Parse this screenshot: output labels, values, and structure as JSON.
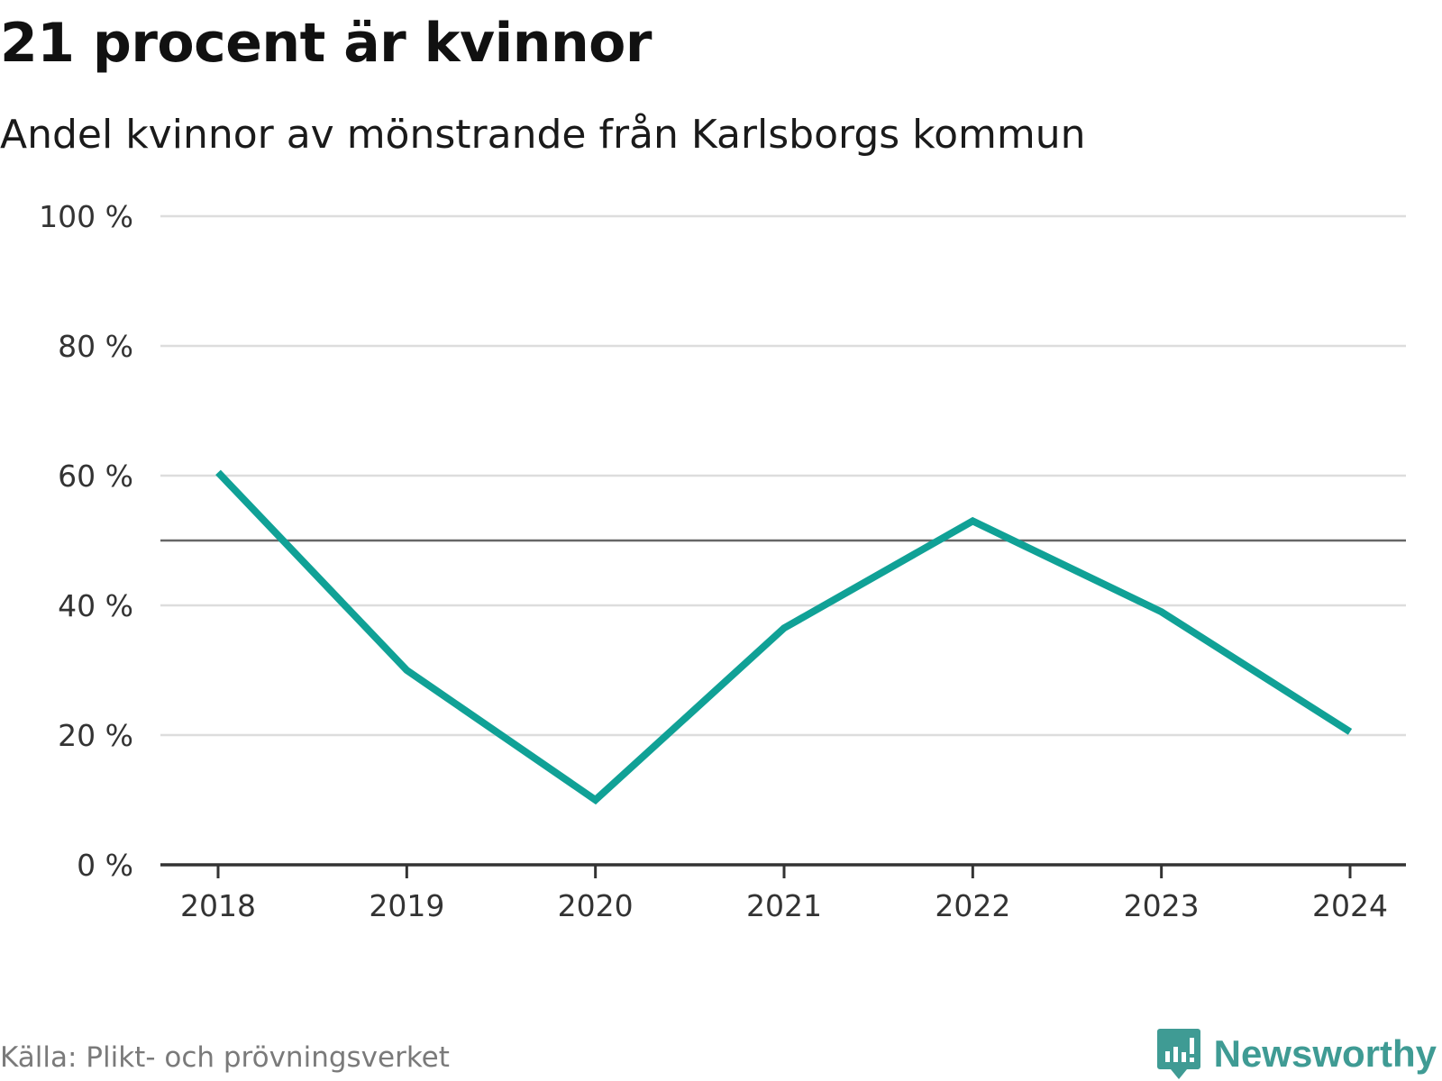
{
  "title": "21 procent är kvinnor",
  "subtitle": "Andel kvinnor av mönstrande från Karlsborgs kommun",
  "source": "Källa: Plikt- och prövningsverket",
  "brand": {
    "name": "Newsworthy",
    "icon": "newsworthy-logo-icon",
    "color": "#3f9b94"
  },
  "chart_data": {
    "type": "line",
    "title": "21 procent är kvinnor",
    "subtitle": "Andel kvinnor av mönstrande från Karlsborgs kommun",
    "x": [
      "2018",
      "2019",
      "2020",
      "2021",
      "2022",
      "2023",
      "2024"
    ],
    "series": [
      {
        "values": [
          60.5,
          30,
          10,
          36.5,
          53,
          39,
          20.5
        ],
        "color": "#10a196"
      }
    ],
    "reference_line": {
      "y": 50,
      "color": "#666666"
    },
    "ylim": [
      0,
      100
    ],
    "yticks": [
      0,
      20,
      40,
      60,
      80,
      100
    ],
    "ytick_labels": [
      "0 %",
      "20 %",
      "40 %",
      "60 %",
      "80 %",
      "100 %"
    ],
    "grid": true,
    "legend": "none"
  }
}
